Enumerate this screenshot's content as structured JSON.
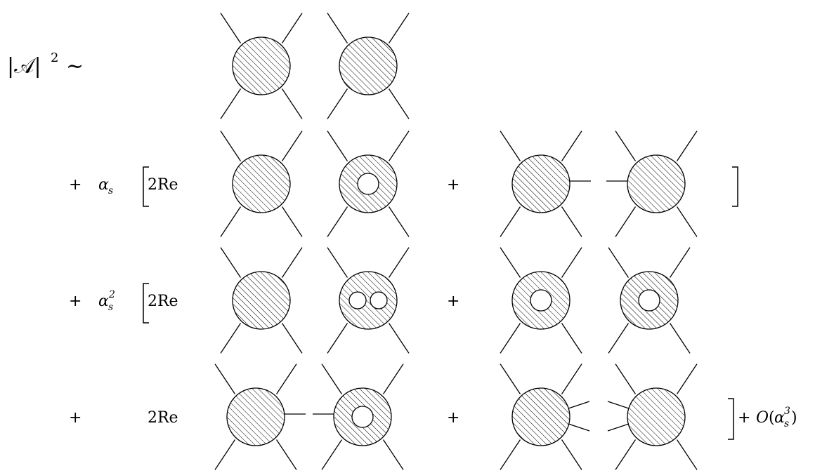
{
  "lhs": {
    "abs_a": "|𝒜|",
    "exp": "2",
    "sim": "∼"
  },
  "rows": [
    {
      "plus": "",
      "coef": "",
      "coef_sub": "",
      "coef_sup": "",
      "two_re": "",
      "open_bracket": false,
      "mid_plus": "",
      "close_bracket": false,
      "tail": ""
    },
    {
      "plus": "+",
      "coef": "α",
      "coef_sub": "s",
      "coef_sup": "",
      "two_re": "2Re",
      "open_bracket": true,
      "mid_plus": "+",
      "close_bracket": true,
      "tail": ""
    },
    {
      "plus": "+",
      "coef": "α",
      "coef_sub": "s",
      "coef_sup": "2",
      "two_re": "2Re",
      "open_bracket": true,
      "mid_plus": "+",
      "close_bracket": false,
      "tail": ""
    },
    {
      "plus": "+",
      "coef": "",
      "coef_sub": "",
      "coef_sup": "",
      "two_re": "2Re",
      "open_bracket": false,
      "mid_plus": "+",
      "close_bracket": true,
      "tail": "+ O(α³ₛ)"
    }
  ],
  "tail_parts": {
    "plus": "+",
    "o": "O",
    "paren_open": "(",
    "alpha": "α",
    "sup": "3",
    "sub": "s",
    "paren_close": ")"
  },
  "diagrams": [
    {
      "row": 0,
      "slot": 0,
      "holes": 0,
      "stub": "none"
    },
    {
      "row": 0,
      "slot": 1,
      "holes": 0,
      "stub": "none"
    },
    {
      "row": 1,
      "slot": 0,
      "holes": 0,
      "stub": "none"
    },
    {
      "row": 1,
      "slot": 1,
      "holes": 1,
      "stub": "none"
    },
    {
      "row": 1,
      "slot": 2,
      "holes": 0,
      "stub": "right"
    },
    {
      "row": 1,
      "slot": 3,
      "holes": 0,
      "stub": "left"
    },
    {
      "row": 2,
      "slot": 0,
      "holes": 0,
      "stub": "none"
    },
    {
      "row": 2,
      "slot": 1,
      "holes": 2,
      "stub": "none"
    },
    {
      "row": 2,
      "slot": 2,
      "holes": 1,
      "stub": "none"
    },
    {
      "row": 2,
      "slot": 3,
      "holes": 1,
      "stub": "none"
    },
    {
      "row": 3,
      "slot": 0,
      "holes": 0,
      "stub": "right"
    },
    {
      "row": 3,
      "slot": 1,
      "holes": 1,
      "stub": "left"
    },
    {
      "row": 3,
      "slot": 2,
      "holes": 0,
      "stub": "right2"
    },
    {
      "row": 3,
      "slot": 3,
      "holes": 0,
      "stub": "left2"
    }
  ]
}
